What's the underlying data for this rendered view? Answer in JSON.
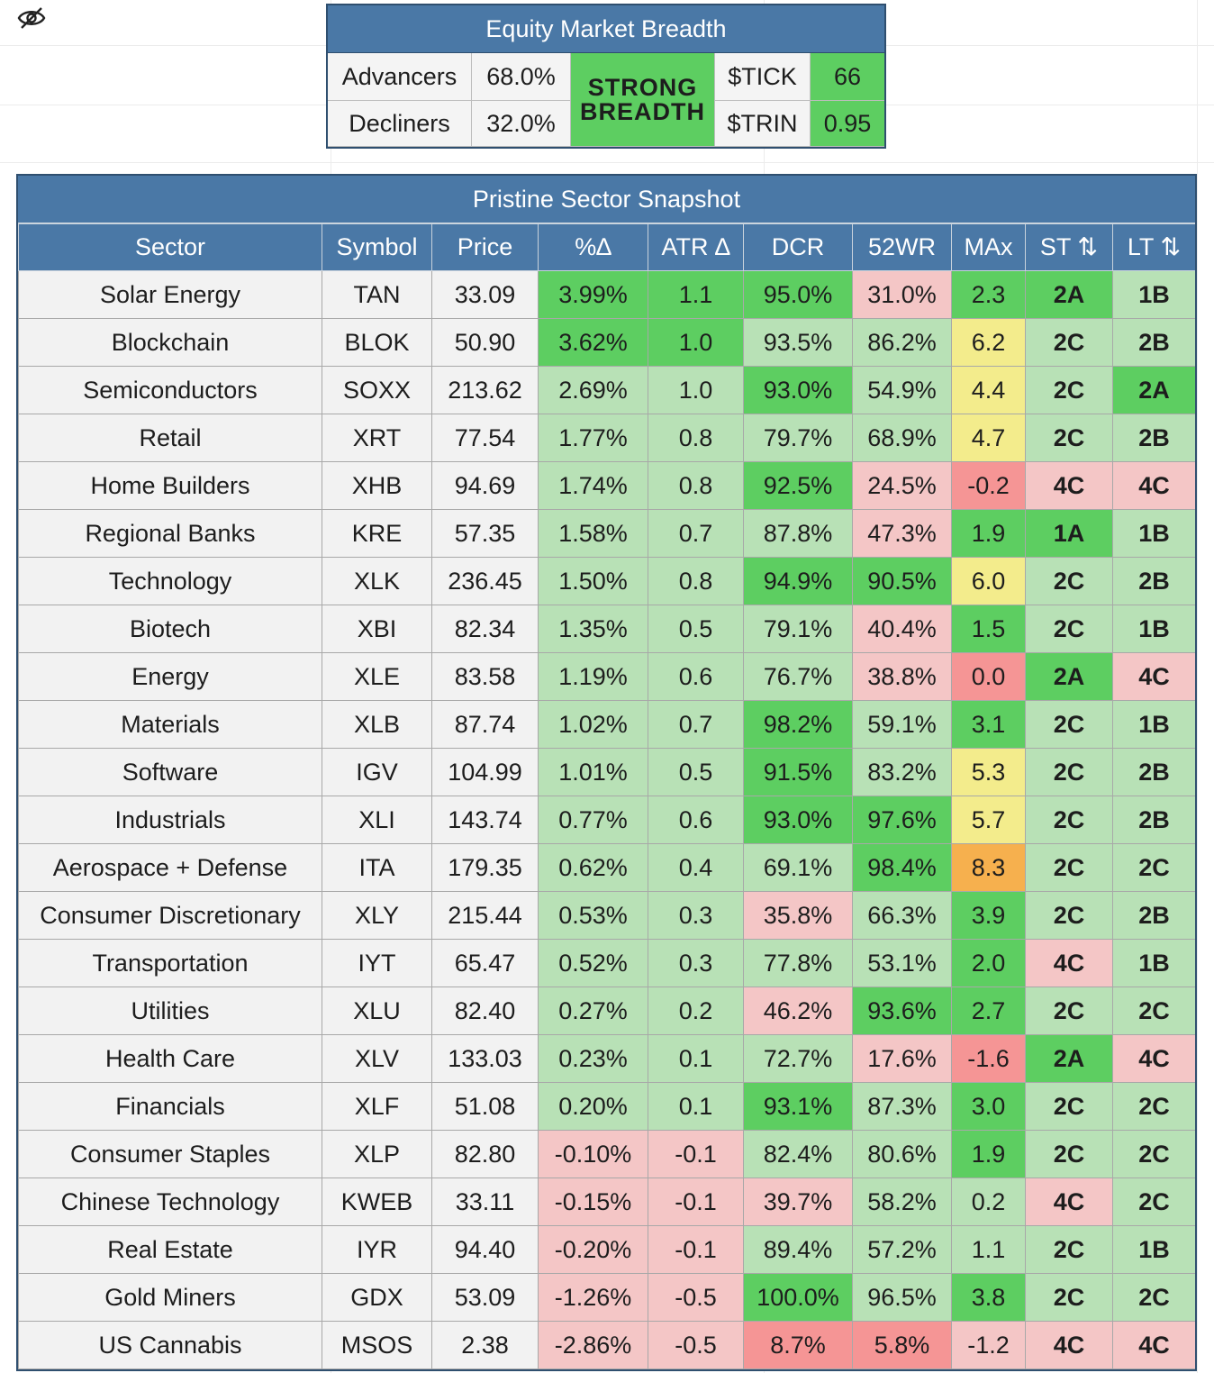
{
  "breadth": {
    "title": "Equity Market Breadth",
    "advancers_label": "Advancers",
    "advancers_value": "68.0%",
    "decliners_label": "Decliners",
    "decliners_value": "32.0%",
    "status_line1": "STRONG",
    "status_line2": "BREADTH",
    "tick_label": "$TICK",
    "tick_value": "66",
    "trin_label": "$TRIN",
    "trin_value": "0.95"
  },
  "snapshot": {
    "title": "Pristine Sector Snapshot",
    "headers": [
      "Sector",
      "Symbol",
      "Price",
      "%∆",
      "ATR ∆",
      "DCR",
      "52WR",
      "MAx",
      "ST ⇅",
      "LT ⇅"
    ],
    "colors": {
      "dark_green": "#5dce61",
      "light_green": "#b8e1b6",
      "light_red": "#f4c6c6",
      "dark_red": "#f59595",
      "yellow": "#f3ec8c",
      "orange": "#f6b04e",
      "header_blue": "#4a78a6"
    },
    "rows": [
      {
        "sector": "Solar Energy",
        "symbol": "TAN",
        "price": "33.09",
        "pct": "3.99%",
        "atr": "1.1",
        "dcr": "95.0%",
        "wr52": "31.0%",
        "max": "2.3",
        "st": "2A",
        "lt": "1B"
      },
      {
        "sector": "Blockchain",
        "symbol": "BLOK",
        "price": "50.90",
        "pct": "3.62%",
        "atr": "1.0",
        "dcr": "93.5%",
        "wr52": "86.2%",
        "max": "6.2",
        "st": "2C",
        "lt": "2B"
      },
      {
        "sector": "Semiconductors",
        "symbol": "SOXX",
        "price": "213.62",
        "pct": "2.69%",
        "atr": "1.0",
        "dcr": "93.0%",
        "wr52": "54.9%",
        "max": "4.4",
        "st": "2C",
        "lt": "2A"
      },
      {
        "sector": "Retail",
        "symbol": "XRT",
        "price": "77.54",
        "pct": "1.77%",
        "atr": "0.8",
        "dcr": "79.7%",
        "wr52": "68.9%",
        "max": "4.7",
        "st": "2C",
        "lt": "2B"
      },
      {
        "sector": "Home Builders",
        "symbol": "XHB",
        "price": "94.69",
        "pct": "1.74%",
        "atr": "0.8",
        "dcr": "92.5%",
        "wr52": "24.5%",
        "max": "-0.2",
        "st": "4C",
        "lt": "4C"
      },
      {
        "sector": "Regional Banks",
        "symbol": "KRE",
        "price": "57.35",
        "pct": "1.58%",
        "atr": "0.7",
        "dcr": "87.8%",
        "wr52": "47.3%",
        "max": "1.9",
        "st": "1A",
        "lt": "1B"
      },
      {
        "sector": "Technology",
        "symbol": "XLK",
        "price": "236.45",
        "pct": "1.50%",
        "atr": "0.8",
        "dcr": "94.9%",
        "wr52": "90.5%",
        "max": "6.0",
        "st": "2C",
        "lt": "2B"
      },
      {
        "sector": "Biotech",
        "symbol": "XBI",
        "price": "82.34",
        "pct": "1.35%",
        "atr": "0.5",
        "dcr": "79.1%",
        "wr52": "40.4%",
        "max": "1.5",
        "st": "2C",
        "lt": "1B"
      },
      {
        "sector": "Energy",
        "symbol": "XLE",
        "price": "83.58",
        "pct": "1.19%",
        "atr": "0.6",
        "dcr": "76.7%",
        "wr52": "38.8%",
        "max": "0.0",
        "st": "2A",
        "lt": "4C"
      },
      {
        "sector": "Materials",
        "symbol": "XLB",
        "price": "87.74",
        "pct": "1.02%",
        "atr": "0.7",
        "dcr": "98.2%",
        "wr52": "59.1%",
        "max": "3.1",
        "st": "2C",
        "lt": "1B"
      },
      {
        "sector": "Software",
        "symbol": "IGV",
        "price": "104.99",
        "pct": "1.01%",
        "atr": "0.5",
        "dcr": "91.5%",
        "wr52": "83.2%",
        "max": "5.3",
        "st": "2C",
        "lt": "2B"
      },
      {
        "sector": "Industrials",
        "symbol": "XLI",
        "price": "143.74",
        "pct": "0.77%",
        "atr": "0.6",
        "dcr": "93.0%",
        "wr52": "97.6%",
        "max": "5.7",
        "st": "2C",
        "lt": "2B"
      },
      {
        "sector": "Aerospace + Defense",
        "symbol": "ITA",
        "price": "179.35",
        "pct": "0.62%",
        "atr": "0.4",
        "dcr": "69.1%",
        "wr52": "98.4%",
        "max": "8.3",
        "st": "2C",
        "lt": "2C"
      },
      {
        "sector": "Consumer Discretionary",
        "symbol": "XLY",
        "price": "215.44",
        "pct": "0.53%",
        "atr": "0.3",
        "dcr": "35.8%",
        "wr52": "66.3%",
        "max": "3.9",
        "st": "2C",
        "lt": "2B"
      },
      {
        "sector": "Transportation",
        "symbol": "IYT",
        "price": "65.47",
        "pct": "0.52%",
        "atr": "0.3",
        "dcr": "77.8%",
        "wr52": "53.1%",
        "max": "2.0",
        "st": "4C",
        "lt": "1B"
      },
      {
        "sector": "Utilities",
        "symbol": "XLU",
        "price": "82.40",
        "pct": "0.27%",
        "atr": "0.2",
        "dcr": "46.2%",
        "wr52": "93.6%",
        "max": "2.7",
        "st": "2C",
        "lt": "2C"
      },
      {
        "sector": "Health Care",
        "symbol": "XLV",
        "price": "133.03",
        "pct": "0.23%",
        "atr": "0.1",
        "dcr": "72.7%",
        "wr52": "17.6%",
        "max": "-1.6",
        "st": "2A",
        "lt": "4C"
      },
      {
        "sector": "Financials",
        "symbol": "XLF",
        "price": "51.08",
        "pct": "0.20%",
        "atr": "0.1",
        "dcr": "93.1%",
        "wr52": "87.3%",
        "max": "3.0",
        "st": "2C",
        "lt": "2C"
      },
      {
        "sector": "Consumer Staples",
        "symbol": "XLP",
        "price": "82.80",
        "pct": "-0.10%",
        "atr": "-0.1",
        "dcr": "82.4%",
        "wr52": "80.6%",
        "max": "1.9",
        "st": "2C",
        "lt": "2C"
      },
      {
        "sector": "Chinese Technology",
        "symbol": "KWEB",
        "price": "33.11",
        "pct": "-0.15%",
        "atr": "-0.1",
        "dcr": "39.7%",
        "wr52": "58.2%",
        "max": "0.2",
        "st": "4C",
        "lt": "2C"
      },
      {
        "sector": "Real Estate",
        "symbol": "IYR",
        "price": "94.40",
        "pct": "-0.20%",
        "atr": "-0.1",
        "dcr": "89.4%",
        "wr52": "57.2%",
        "max": "1.1",
        "st": "2C",
        "lt": "1B"
      },
      {
        "sector": "Gold Miners",
        "symbol": "GDX",
        "price": "53.09",
        "pct": "-1.26%",
        "atr": "-0.5",
        "dcr": "100.0%",
        "wr52": "96.5%",
        "max": "3.8",
        "st": "2C",
        "lt": "2C"
      },
      {
        "sector": "US Cannabis",
        "symbol": "MSOS",
        "price": "2.38",
        "pct": "-2.86%",
        "atr": "-0.5",
        "dcr": "8.7%",
        "wr52": "5.8%",
        "max": "-1.2",
        "st": "4C",
        "lt": "4C"
      }
    ]
  }
}
